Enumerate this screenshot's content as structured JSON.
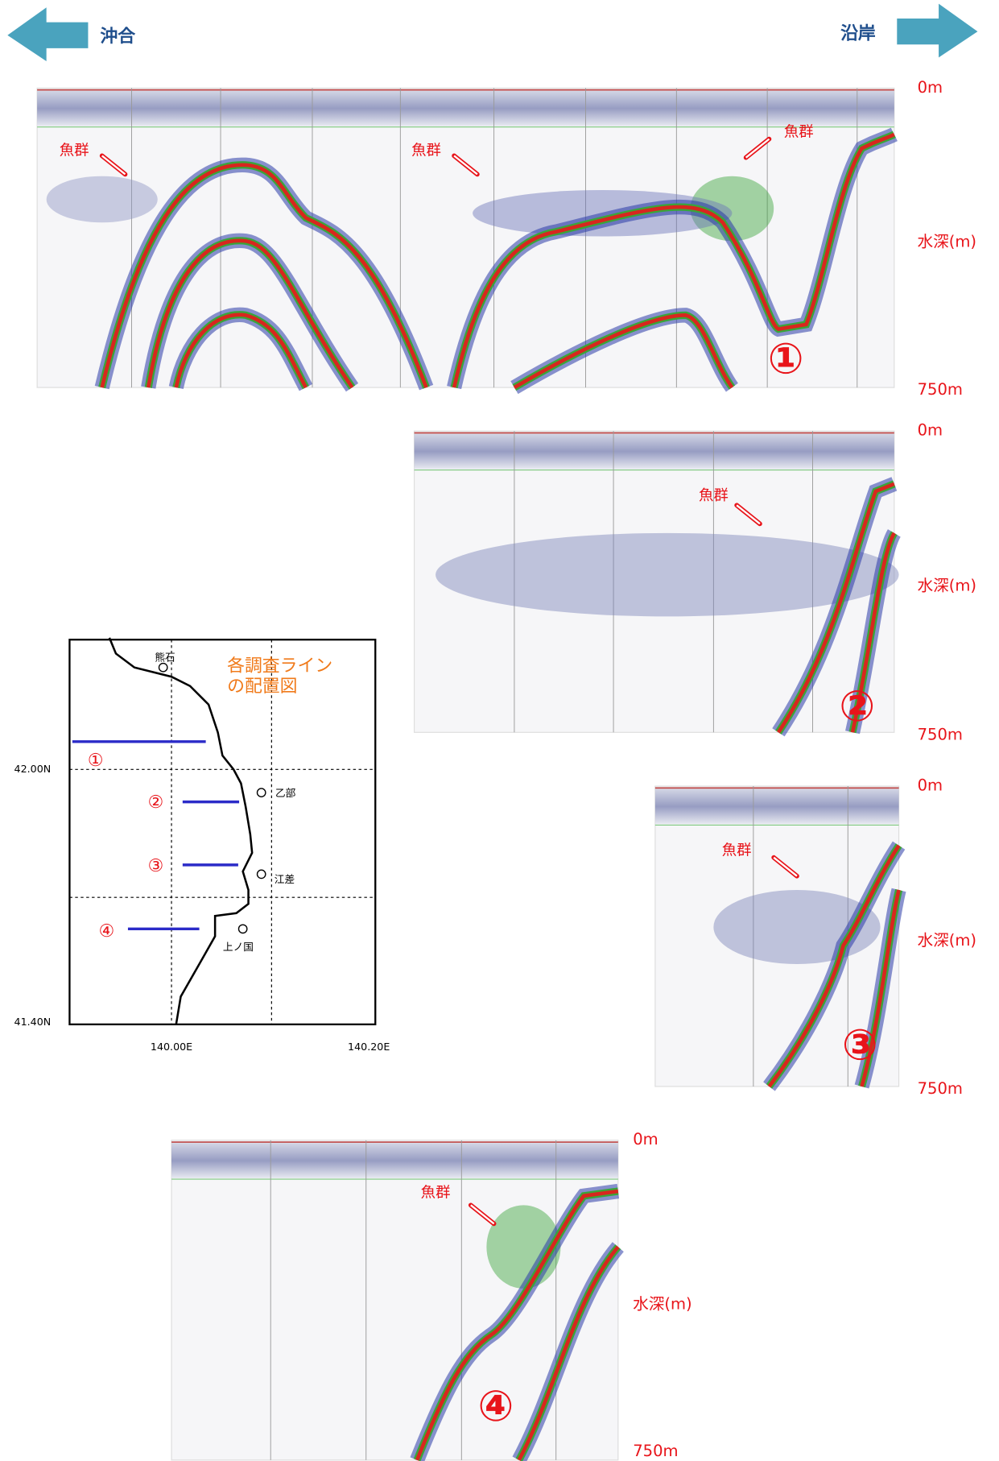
{
  "header": {
    "offshore": "沖合",
    "coast": "沿岸"
  },
  "echograms": [
    {
      "label": "①",
      "depth_top": "0m",
      "depth_axis": "水深(m)",
      "depth_bottom": "750m",
      "annotations": [
        "魚群",
        "魚群",
        "魚群"
      ]
    },
    {
      "label": "②",
      "depth_top": "0m",
      "depth_axis": "水深(m)",
      "depth_bottom": "750m",
      "annotations": [
        "魚群"
      ]
    },
    {
      "label": "③",
      "depth_top": "0m",
      "depth_axis": "水深(m)",
      "depth_bottom": "750m",
      "annotations": [
        "魚群"
      ]
    },
    {
      "label": "④",
      "depth_top": "0m",
      "depth_axis": "水深(m)",
      "depth_bottom": "750m",
      "annotations": [
        "魚群"
      ]
    }
  ],
  "map": {
    "title": [
      "各調査ライン",
      "の配置図"
    ],
    "lat_labels": [
      "42.00N",
      "41.40N"
    ],
    "lon_labels": [
      "140.00E",
      "140.20E"
    ],
    "places": [
      "熊石",
      "乙部",
      "江差",
      "上ノ国"
    ],
    "line_labels": [
      "①",
      "②",
      "③",
      "④"
    ]
  }
}
